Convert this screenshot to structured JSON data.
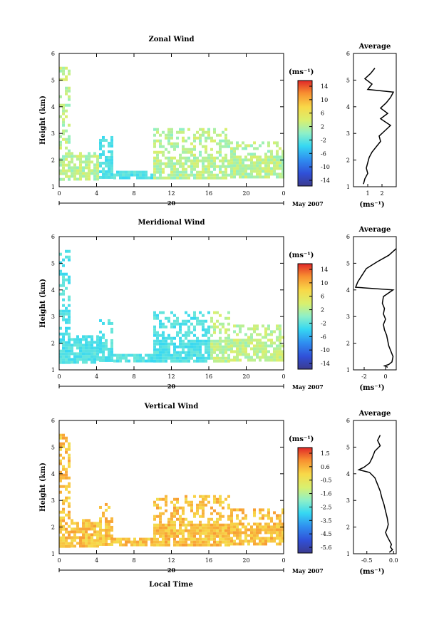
{
  "footer_label": "Local Time",
  "panels": [
    {
      "title": "Zonal Wind",
      "ylabel": "Height (km)",
      "y_ticks": [
        "1",
        "2",
        "3",
        "4",
        "5",
        "6"
      ],
      "x_ticks": [
        "0",
        "4",
        "8",
        "12",
        "16",
        "20",
        "0"
      ],
      "date_label": "20",
      "month_label": "May 2007",
      "cbar_unit": "(ms⁻¹)",
      "cbar_ticks": [
        "14",
        "10",
        "6",
        "2",
        "-2",
        "-6",
        "-10",
        "-14"
      ],
      "cbar_range": [
        -16,
        16
      ],
      "avg_title": "Average",
      "avg_unit": "(ms⁻¹)",
      "avg_xticks": [
        1,
        2
      ],
      "avg_xlim": [
        0,
        3
      ]
    },
    {
      "title": "Meridional Wind",
      "ylabel": "Height (km)",
      "y_ticks": [
        "1",
        "2",
        "3",
        "4",
        "5",
        "6"
      ],
      "x_ticks": [
        "0",
        "4",
        "8",
        "12",
        "16",
        "20",
        "0"
      ],
      "date_label": "20",
      "month_label": "May 2007",
      "cbar_unit": "(ms⁻¹)",
      "cbar_ticks": [
        "14",
        "10",
        "6",
        "2",
        "-2",
        "-6",
        "-10",
        "-14"
      ],
      "cbar_range": [
        -16,
        16
      ],
      "avg_title": "Average",
      "avg_unit": "(ms⁻¹)",
      "avg_xticks": [
        -2,
        0
      ],
      "avg_xlim": [
        -3,
        1
      ]
    },
    {
      "title": "Vertical Wind",
      "ylabel": "Height (km)",
      "y_ticks": [
        "1",
        "2",
        "3",
        "4",
        "5",
        "6"
      ],
      "x_ticks": [
        "0",
        "4",
        "8",
        "12",
        "16",
        "20",
        "0"
      ],
      "date_label": "20",
      "month_label": "May 2007",
      "cbar_unit": "(ms⁻¹)",
      "cbar_ticks": [
        "1.5",
        "0.6",
        "-0.5",
        "-1.6",
        "-2.5",
        "-3.5",
        "-4.5",
        "-5.6"
      ],
      "cbar_range": [
        -6,
        2
      ],
      "avg_title": "Average",
      "avg_unit": "(ms⁻¹)",
      "avg_xticks": [
        -0.5,
        0.0
      ],
      "avg_xlim": [
        -0.75,
        0.05
      ]
    }
  ],
  "chart_data": [
    {
      "type": "heatmap",
      "title": "Zonal Wind",
      "xlabel": "",
      "ylabel": "Height (km)",
      "xlim": [
        0,
        24
      ],
      "ylim": [
        1,
        6
      ],
      "units": "ms^-1",
      "color_range": [
        -16,
        16
      ],
      "color_ticks": [
        14,
        10,
        6,
        2,
        -2,
        -6,
        -10,
        -14
      ],
      "avg_profile": {
        "title": "Average",
        "x_values": [
          1.5,
          1.2,
          0.8,
          1.3,
          1.0,
          2.8,
          2.6,
          2.3,
          1.9,
          2.4,
          1.9,
          2.6,
          2.2,
          1.8,
          1.9,
          1.6,
          1.3,
          1.1,
          1.0,
          0.9,
          1.0,
          0.8,
          0.7
        ],
        "heights_km": [
          5.45,
          5.25,
          5.05,
          4.85,
          4.65,
          4.55,
          4.35,
          4.15,
          3.95,
          3.75,
          3.55,
          3.3,
          3.1,
          2.9,
          2.7,
          2.5,
          2.3,
          2.1,
          1.9,
          1.7,
          1.5,
          1.3,
          1.1
        ]
      }
    },
    {
      "type": "heatmap",
      "title": "Meridional Wind",
      "xlabel": "",
      "ylabel": "Height (km)",
      "xlim": [
        0,
        24
      ],
      "ylim": [
        1,
        6
      ],
      "units": "ms^-1",
      "color_range": [
        -16,
        16
      ],
      "color_ticks": [
        14,
        10,
        6,
        2,
        -2,
        -6,
        -10,
        -14
      ],
      "avg_profile": {
        "title": "Average",
        "x_values": [
          1.0,
          0.3,
          -0.8,
          -1.8,
          -2.2,
          -2.6,
          -2.8,
          0.7,
          -0.2,
          -0.3,
          -0.1,
          -0.2,
          0.0,
          -0.2,
          -0.1,
          0.1,
          0.2,
          0.3,
          0.5,
          0.7,
          0.6,
          0.3,
          -0.1,
          0.2
        ],
        "heights_km": [
          5.55,
          5.3,
          5.05,
          4.8,
          4.55,
          4.3,
          4.1,
          4.0,
          3.75,
          3.5,
          3.3,
          3.1,
          2.9,
          2.7,
          2.5,
          2.3,
          2.1,
          1.9,
          1.7,
          1.5,
          1.3,
          1.2,
          1.15,
          1.1
        ]
      }
    },
    {
      "type": "heatmap",
      "title": "Vertical Wind",
      "xlabel": "Local Time",
      "ylabel": "Height (km)",
      "xlim": [
        0,
        24
      ],
      "ylim": [
        1,
        6
      ],
      "units": "ms^-1",
      "color_range": [
        -6,
        2
      ],
      "color_ticks": [
        1.5,
        0.6,
        -0.5,
        -1.6,
        -2.5,
        -3.5,
        -4.5,
        -5.6
      ],
      "avg_profile": {
        "title": "Average",
        "x_values": [
          -0.25,
          -0.3,
          -0.25,
          -0.35,
          -0.4,
          -0.45,
          -0.55,
          -0.65,
          -0.45,
          -0.35,
          -0.3,
          -0.25,
          -0.22,
          -0.18,
          -0.15,
          -0.12,
          -0.1,
          -0.12,
          -0.15,
          -0.12,
          -0.08,
          -0.04,
          -0.06,
          -0.02,
          -0.08
        ],
        "heights_km": [
          5.45,
          5.25,
          5.05,
          4.85,
          4.6,
          4.4,
          4.25,
          4.15,
          4.05,
          3.85,
          3.6,
          3.35,
          3.1,
          2.85,
          2.6,
          2.35,
          2.1,
          1.95,
          1.8,
          1.65,
          1.5,
          1.35,
          1.25,
          1.15,
          1.05
        ]
      }
    }
  ]
}
